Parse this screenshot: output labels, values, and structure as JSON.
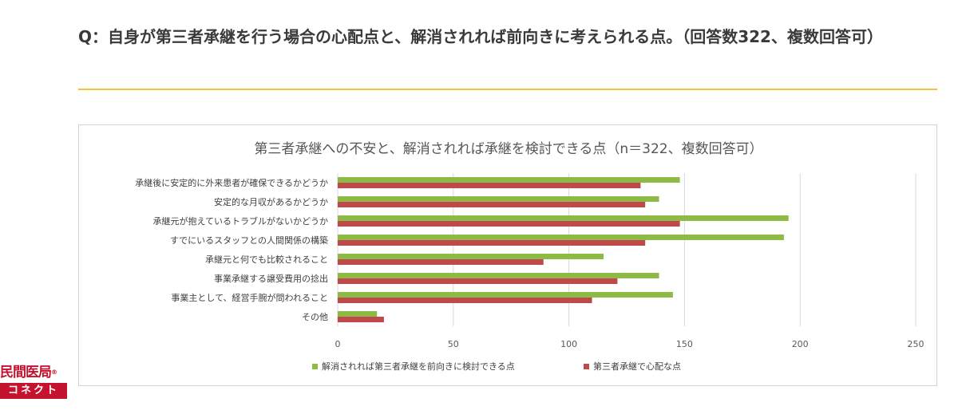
{
  "question": "Q：自身が第三者承継を行う場合の心配点と、解消されれば前向きに考えられる点。（回答数322、複数回答可）",
  "logo": {
    "top_text": "民間医局",
    "bottom_text": "コネクト",
    "brand_color": "#c4122f"
  },
  "colors": {
    "divider": "#f0c43a",
    "green": "#8dbb45",
    "red": "#c0494a"
  },
  "chart_data": {
    "type": "bar",
    "orientation": "horizontal",
    "title": "第三者承継への不安と、解消されれば承継を検討できる点（n＝322、複数回答可）",
    "categories": [
      "承継後に安定的に外来患者が確保できるかどうか",
      "安定的な月収があるかどうか",
      "承継元が抱えているトラブルがないかどうか",
      "すでにいるスタッフとの人間関係の構築",
      "承継元と何でも比較されること",
      "事業承継する譲受費用の捻出",
      "事業主として、経営手腕が問われること",
      "その他"
    ],
    "series": [
      {
        "name": "解消されれば第三者承継を前向きに検討できる点",
        "color": "#8dbb45",
        "values": [
          148,
          139,
          195,
          193,
          115,
          139,
          145,
          17
        ]
      },
      {
        "name": "第三者承継で心配な点",
        "color": "#c0494a",
        "values": [
          131,
          133,
          148,
          133,
          89,
          121,
          110,
          20
        ]
      }
    ],
    "xlim": [
      0,
      250
    ],
    "xticks": [
      "0",
      "50",
      "100",
      "150",
      "200",
      "250"
    ],
    "grid": true,
    "legend_position": "bottom"
  }
}
